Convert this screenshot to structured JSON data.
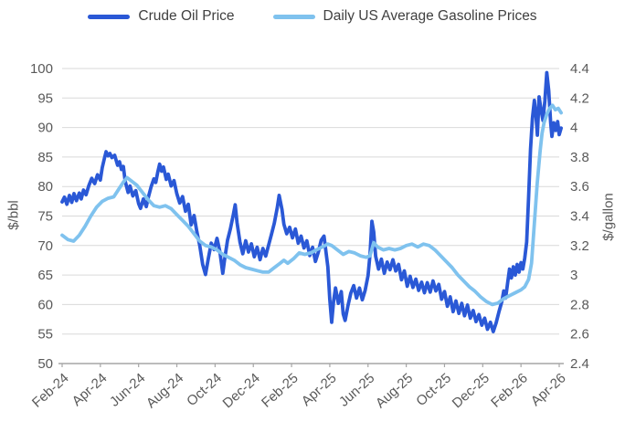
{
  "legend": {
    "items": [
      {
        "label": "Crude Oil Price",
        "color": "#2A58D6"
      },
      {
        "label": "Daily US Average Gasoline Prices",
        "color": "#7FC2EE"
      }
    ]
  },
  "chart_data": {
    "type": "line",
    "title": "",
    "grid": "horizontal",
    "legend_position": "top",
    "x_tick_labels": [
      "Feb-24",
      "Apr-24",
      "Jun-24",
      "Aug-24",
      "Oct-24",
      "Dec-24",
      "Feb-25",
      "Apr-25",
      "Jun-25",
      "Aug-25",
      "Oct-25",
      "Dec-25",
      "Feb-26",
      "Apr-26"
    ],
    "x_unit": "months since Feb-2024, 2-month tick spacing",
    "left_axis": {
      "label": "$/bbl",
      "min": 50,
      "max": 100,
      "step": 5,
      "tick_labels": [
        "50",
        "55",
        "60",
        "65",
        "70",
        "75",
        "80",
        "85",
        "90",
        "95",
        "100"
      ]
    },
    "right_axis": {
      "label": "$/gallon",
      "min": 2.4,
      "max": 4.4,
      "step": 0.2,
      "tick_labels": [
        "2.4",
        "2.6",
        "2.8",
        "3",
        "3.2",
        "3.4",
        "3.6",
        "3.8",
        "4",
        "4.2",
        "4.4"
      ]
    },
    "colors": {
      "grid": "#d9d9d9",
      "axis": "#a6a6a6",
      "tick_text": "#595959"
    },
    "series": [
      {
        "name": "Crude Oil Price",
        "axis": "left",
        "color": "#2A58D6",
        "points": [
          [
            0.0,
            77.4
          ],
          [
            0.12,
            78.2
          ],
          [
            0.25,
            77.0
          ],
          [
            0.38,
            78.5
          ],
          [
            0.5,
            77.3
          ],
          [
            0.62,
            78.8
          ],
          [
            0.75,
            77.6
          ],
          [
            0.9,
            78.9
          ],
          [
            1.0,
            77.9
          ],
          [
            1.12,
            79.4
          ],
          [
            1.25,
            78.6
          ],
          [
            1.4,
            80.2
          ],
          [
            1.55,
            81.4
          ],
          [
            1.7,
            80.5
          ],
          [
            1.85,
            82.0
          ],
          [
            2.0,
            81.1
          ],
          [
            2.1,
            83.2
          ],
          [
            2.2,
            84.6
          ],
          [
            2.3,
            85.9
          ],
          [
            2.4,
            85.2
          ],
          [
            2.5,
            85.6
          ],
          [
            2.6,
            84.9
          ],
          [
            2.75,
            85.3
          ],
          [
            2.9,
            83.6
          ],
          [
            3.0,
            84.2
          ],
          [
            3.1,
            82.9
          ],
          [
            3.2,
            83.4
          ],
          [
            3.3,
            80.9
          ],
          [
            3.45,
            79.0
          ],
          [
            3.55,
            80.1
          ],
          [
            3.7,
            78.4
          ],
          [
            3.85,
            79.3
          ],
          [
            4.0,
            77.1
          ],
          [
            4.1,
            76.3
          ],
          [
            4.25,
            77.9
          ],
          [
            4.4,
            76.6
          ],
          [
            4.5,
            78.1
          ],
          [
            4.65,
            79.9
          ],
          [
            4.8,
            81.3
          ],
          [
            4.9,
            80.7
          ],
          [
            5.0,
            82.4
          ],
          [
            5.1,
            83.8
          ],
          [
            5.2,
            82.6
          ],
          [
            5.3,
            83.3
          ],
          [
            5.45,
            81.2
          ],
          [
            5.55,
            82.1
          ],
          [
            5.7,
            80.1
          ],
          [
            5.85,
            81.0
          ],
          [
            6.0,
            78.8
          ],
          [
            6.15,
            77.2
          ],
          [
            6.3,
            78.3
          ],
          [
            6.45,
            75.8
          ],
          [
            6.6,
            77.0
          ],
          [
            6.75,
            73.5
          ],
          [
            6.9,
            75.1
          ],
          [
            7.05,
            72.3
          ],
          [
            7.2,
            70.0
          ],
          [
            7.35,
            66.8
          ],
          [
            7.5,
            65.1
          ],
          [
            7.65,
            67.9
          ],
          [
            7.8,
            70.4
          ],
          [
            7.95,
            69.3
          ],
          [
            8.1,
            71.2
          ],
          [
            8.25,
            69.0
          ],
          [
            8.4,
            65.3
          ],
          [
            8.5,
            67.6
          ],
          [
            8.65,
            70.9
          ],
          [
            8.8,
            72.8
          ],
          [
            8.95,
            75.2
          ],
          [
            9.05,
            76.9
          ],
          [
            9.15,
            73.9
          ],
          [
            9.3,
            70.6
          ],
          [
            9.45,
            68.6
          ],
          [
            9.6,
            70.8
          ],
          [
            9.75,
            68.9
          ],
          [
            9.9,
            70.3
          ],
          [
            10.05,
            68.1
          ],
          [
            10.2,
            69.7
          ],
          [
            10.35,
            67.6
          ],
          [
            10.5,
            69.5
          ],
          [
            10.65,
            68.2
          ],
          [
            10.8,
            70.1
          ],
          [
            10.95,
            71.9
          ],
          [
            11.1,
            73.8
          ],
          [
            11.25,
            76.4
          ],
          [
            11.35,
            78.5
          ],
          [
            11.5,
            76.1
          ],
          [
            11.6,
            73.6
          ],
          [
            11.75,
            72.0
          ],
          [
            11.9,
            73.1
          ],
          [
            12.05,
            71.3
          ],
          [
            12.2,
            72.8
          ],
          [
            12.35,
            70.4
          ],
          [
            12.5,
            71.6
          ],
          [
            12.65,
            69.6
          ],
          [
            12.8,
            70.8
          ],
          [
            12.95,
            68.3
          ],
          [
            13.1,
            69.7
          ],
          [
            13.25,
            67.3
          ],
          [
            13.4,
            68.9
          ],
          [
            13.55,
            70.9
          ],
          [
            13.7,
            71.6
          ],
          [
            13.8,
            69.0
          ],
          [
            13.9,
            66.4
          ],
          [
            14.0,
            60.9
          ],
          [
            14.1,
            57.0
          ],
          [
            14.2,
            60.6
          ],
          [
            14.3,
            62.8
          ],
          [
            14.45,
            60.2
          ],
          [
            14.6,
            62.2
          ],
          [
            14.7,
            58.4
          ],
          [
            14.8,
            57.3
          ],
          [
            14.95,
            59.8
          ],
          [
            15.1,
            61.9
          ],
          [
            15.25,
            63.2
          ],
          [
            15.4,
            61.1
          ],
          [
            15.55,
            62.8
          ],
          [
            15.7,
            60.8
          ],
          [
            15.85,
            62.4
          ],
          [
            16.0,
            64.9
          ],
          [
            16.1,
            68.4
          ],
          [
            16.2,
            74.1
          ],
          [
            16.3,
            72.3
          ],
          [
            16.4,
            68.2
          ],
          [
            16.55,
            66.0
          ],
          [
            16.7,
            67.7
          ],
          [
            16.85,
            65.3
          ],
          [
            17.0,
            67.2
          ],
          [
            17.15,
            65.9
          ],
          [
            17.3,
            67.6
          ],
          [
            17.45,
            65.7
          ],
          [
            17.6,
            66.8
          ],
          [
            17.75,
            64.2
          ],
          [
            17.9,
            65.7
          ],
          [
            18.05,
            63.1
          ],
          [
            18.2,
            64.8
          ],
          [
            18.35,
            62.9
          ],
          [
            18.5,
            64.3
          ],
          [
            18.65,
            62.4
          ],
          [
            18.8,
            63.8
          ],
          [
            18.95,
            62.0
          ],
          [
            19.1,
            63.7
          ],
          [
            19.25,
            62.1
          ],
          [
            19.4,
            64.0
          ],
          [
            19.55,
            62.3
          ],
          [
            19.7,
            63.4
          ],
          [
            19.85,
            60.9
          ],
          [
            20.0,
            62.2
          ],
          [
            20.15,
            59.7
          ],
          [
            20.3,
            61.3
          ],
          [
            20.45,
            58.8
          ],
          [
            20.6,
            60.6
          ],
          [
            20.75,
            58.5
          ],
          [
            20.9,
            60.2
          ],
          [
            21.05,
            58.1
          ],
          [
            21.2,
            59.9
          ],
          [
            21.35,
            57.7
          ],
          [
            21.5,
            59.0
          ],
          [
            21.65,
            57.1
          ],
          [
            21.8,
            58.3
          ],
          [
            21.95,
            56.5
          ],
          [
            22.1,
            57.7
          ],
          [
            22.25,
            55.8
          ],
          [
            22.4,
            57.0
          ],
          [
            22.55,
            55.4
          ],
          [
            22.7,
            56.9
          ],
          [
            22.85,
            58.8
          ],
          [
            23.0,
            60.5
          ],
          [
            23.1,
            62.3
          ],
          [
            23.2,
            61.1
          ],
          [
            23.3,
            63.6
          ],
          [
            23.4,
            66.0
          ],
          [
            23.5,
            64.5
          ],
          [
            23.6,
            66.4
          ],
          [
            23.7,
            65.0
          ],
          [
            23.8,
            66.8
          ],
          [
            23.9,
            65.5
          ],
          [
            24.0,
            67.1
          ],
          [
            24.1,
            66.0
          ],
          [
            24.2,
            67.9
          ],
          [
            24.3,
            70.6
          ],
          [
            24.4,
            78.2
          ],
          [
            24.5,
            86.3
          ],
          [
            24.6,
            91.6
          ],
          [
            24.7,
            94.6
          ],
          [
            24.78,
            92.2
          ],
          [
            24.86,
            88.7
          ],
          [
            24.95,
            95.2
          ],
          [
            25.05,
            93.0
          ],
          [
            25.15,
            91.2
          ],
          [
            25.25,
            94.5
          ],
          [
            25.35,
            99.3
          ],
          [
            25.45,
            96.3
          ],
          [
            25.55,
            90.9
          ],
          [
            25.62,
            88.5
          ],
          [
            25.72,
            90.8
          ],
          [
            25.82,
            89.5
          ],
          [
            25.92,
            91.0
          ],
          [
            26.0,
            88.8
          ],
          [
            26.1,
            89.9
          ]
        ]
      },
      {
        "name": "Daily US Average Gasoline Prices",
        "axis": "right",
        "color": "#7FC2EE",
        "points": [
          [
            0.0,
            3.27
          ],
          [
            0.3,
            3.24
          ],
          [
            0.6,
            3.23
          ],
          [
            0.9,
            3.27
          ],
          [
            1.2,
            3.33
          ],
          [
            1.5,
            3.4
          ],
          [
            1.8,
            3.46
          ],
          [
            2.1,
            3.5
          ],
          [
            2.4,
            3.52
          ],
          [
            2.7,
            3.53
          ],
          [
            3.0,
            3.59
          ],
          [
            3.2,
            3.63
          ],
          [
            3.4,
            3.66
          ],
          [
            3.6,
            3.64
          ],
          [
            3.9,
            3.61
          ],
          [
            4.2,
            3.56
          ],
          [
            4.5,
            3.51
          ],
          [
            4.8,
            3.47
          ],
          [
            5.1,
            3.46
          ],
          [
            5.4,
            3.47
          ],
          [
            5.7,
            3.45
          ],
          [
            6.0,
            3.41
          ],
          [
            6.3,
            3.37
          ],
          [
            6.6,
            3.33
          ],
          [
            6.9,
            3.28
          ],
          [
            7.2,
            3.23
          ],
          [
            7.5,
            3.2
          ],
          [
            7.8,
            3.19
          ],
          [
            8.1,
            3.17
          ],
          [
            8.4,
            3.14
          ],
          [
            8.7,
            3.12
          ],
          [
            9.0,
            3.1
          ],
          [
            9.3,
            3.07
          ],
          [
            9.6,
            3.05
          ],
          [
            9.9,
            3.04
          ],
          [
            10.2,
            3.03
          ],
          [
            10.5,
            3.02
          ],
          [
            10.8,
            3.02
          ],
          [
            11.1,
            3.05
          ],
          [
            11.4,
            3.08
          ],
          [
            11.6,
            3.1
          ],
          [
            11.8,
            3.08
          ],
          [
            12.1,
            3.11
          ],
          [
            12.4,
            3.15
          ],
          [
            12.7,
            3.14
          ],
          [
            13.0,
            3.15
          ],
          [
            13.3,
            3.17
          ],
          [
            13.6,
            3.19
          ],
          [
            13.9,
            3.21
          ],
          [
            14.1,
            3.2
          ],
          [
            14.4,
            3.17
          ],
          [
            14.7,
            3.14
          ],
          [
            15.0,
            3.16
          ],
          [
            15.3,
            3.15
          ],
          [
            15.6,
            3.13
          ],
          [
            15.9,
            3.12
          ],
          [
            16.1,
            3.13
          ],
          [
            16.3,
            3.22
          ],
          [
            16.5,
            3.19
          ],
          [
            16.8,
            3.17
          ],
          [
            17.1,
            3.18
          ],
          [
            17.4,
            3.17
          ],
          [
            17.7,
            3.18
          ],
          [
            18.0,
            3.2
          ],
          [
            18.3,
            3.21
          ],
          [
            18.6,
            3.19
          ],
          [
            18.9,
            3.21
          ],
          [
            19.2,
            3.2
          ],
          [
            19.5,
            3.17
          ],
          [
            19.8,
            3.13
          ],
          [
            20.1,
            3.09
          ],
          [
            20.4,
            3.05
          ],
          [
            20.7,
            3.0
          ],
          [
            21.0,
            2.96
          ],
          [
            21.3,
            2.92
          ],
          [
            21.6,
            2.89
          ],
          [
            21.9,
            2.85
          ],
          [
            22.2,
            2.82
          ],
          [
            22.5,
            2.8
          ],
          [
            22.8,
            2.81
          ],
          [
            23.1,
            2.84
          ],
          [
            23.4,
            2.86
          ],
          [
            23.7,
            2.88
          ],
          [
            24.0,
            2.9
          ],
          [
            24.2,
            2.92
          ],
          [
            24.4,
            2.97
          ],
          [
            24.55,
            3.08
          ],
          [
            24.7,
            3.35
          ],
          [
            24.85,
            3.62
          ],
          [
            25.0,
            3.84
          ],
          [
            25.1,
            3.96
          ],
          [
            25.2,
            4.03
          ],
          [
            25.35,
            4.09
          ],
          [
            25.5,
            4.13
          ],
          [
            25.65,
            4.15
          ],
          [
            25.8,
            4.12
          ],
          [
            25.95,
            4.13
          ],
          [
            26.1,
            4.1
          ]
        ]
      }
    ]
  }
}
